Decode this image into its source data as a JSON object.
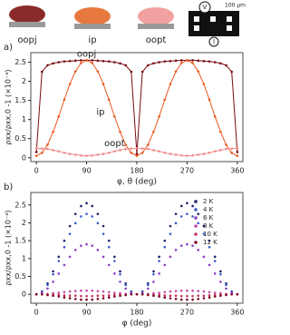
{
  "chart_data": [
    {
      "type": "line",
      "panel_label": "a)",
      "xlabel": "φ, θ (deg)",
      "ylabel": "ρxx/ρxx,0 -1 (×10⁻⁴)",
      "x": [
        0,
        10,
        20,
        30,
        40,
        50,
        60,
        70,
        80,
        90,
        100,
        110,
        120,
        130,
        140,
        150,
        160,
        170,
        180,
        190,
        200,
        210,
        220,
        230,
        240,
        250,
        260,
        270,
        280,
        290,
        300,
        310,
        320,
        330,
        340,
        350,
        360
      ],
      "xlim": [
        -10,
        370
      ],
      "xticks": [
        0,
        90,
        180,
        270,
        360
      ],
      "ylim": [
        -0.1,
        2.75
      ],
      "yticks": [
        0,
        0.5,
        1,
        1.5,
        2,
        2.5
      ],
      "series": [
        {
          "name": "oopj",
          "color": "#7a0c10",
          "values": [
            0.15,
            2.25,
            2.42,
            2.47,
            2.5,
            2.52,
            2.53,
            2.54,
            2.55,
            2.55,
            2.55,
            2.54,
            2.53,
            2.52,
            2.5,
            2.47,
            2.42,
            2.25,
            0.1,
            2.25,
            2.42,
            2.47,
            2.5,
            2.52,
            2.53,
            2.54,
            2.55,
            2.55,
            2.55,
            2.54,
            2.53,
            2.52,
            2.5,
            2.47,
            2.42,
            2.25,
            0.15
          ]
        },
        {
          "name": "ip",
          "color": "#e8591e",
          "values": [
            0.05,
            0.13,
            0.34,
            0.68,
            1.08,
            1.52,
            1.93,
            2.26,
            2.48,
            2.55,
            2.48,
            2.26,
            1.93,
            1.52,
            1.08,
            0.68,
            0.34,
            0.13,
            0.05,
            0.13,
            0.34,
            0.68,
            1.08,
            1.52,
            1.93,
            2.26,
            2.48,
            2.55,
            2.48,
            2.26,
            1.93,
            1.52,
            1.08,
            0.68,
            0.34,
            0.13,
            0.05
          ]
        },
        {
          "name": "oopt",
          "color": "#f08a8a",
          "values": [
            0.25,
            0.24,
            0.23,
            0.2,
            0.17,
            0.13,
            0.1,
            0.08,
            0.06,
            0.05,
            0.06,
            0.08,
            0.1,
            0.13,
            0.17,
            0.2,
            0.23,
            0.24,
            0.25,
            0.24,
            0.23,
            0.2,
            0.17,
            0.13,
            0.1,
            0.08,
            0.06,
            0.05,
            0.06,
            0.08,
            0.1,
            0.13,
            0.17,
            0.2,
            0.23,
            0.24,
            0.25
          ]
        }
      ]
    },
    {
      "type": "scatter",
      "panel_label": "b)",
      "xlabel": "φ (deg)",
      "ylabel": "ρxx/ρxx,0 -1 (×10⁻⁴)",
      "x": [
        0,
        10,
        20,
        30,
        40,
        50,
        60,
        70,
        80,
        90,
        100,
        110,
        120,
        130,
        140,
        150,
        160,
        170,
        180,
        190,
        200,
        210,
        220,
        230,
        240,
        250,
        260,
        270,
        280,
        290,
        300,
        310,
        320,
        330,
        340,
        350,
        360
      ],
      "xlim": [
        -10,
        370
      ],
      "xticks": [
        0,
        90,
        180,
        270,
        360
      ],
      "ylim": [
        -0.25,
        2.85
      ],
      "yticks": [
        0,
        0.5,
        1,
        1.5,
        2,
        2.5
      ],
      "series": [
        {
          "name": "2 K",
          "color": "#1b1f6b",
          "values": [
            0,
            0.08,
            0.3,
            0.64,
            1.05,
            1.5,
            1.91,
            2.25,
            2.47,
            2.55,
            2.47,
            2.25,
            1.91,
            1.5,
            1.05,
            0.64,
            0.3,
            0.08,
            0,
            0.08,
            0.3,
            0.64,
            1.05,
            1.5,
            1.91,
            2.25,
            2.47,
            2.55,
            2.47,
            2.25,
            1.91,
            1.5,
            1.05,
            0.64,
            0.3,
            0.08,
            0
          ]
        },
        {
          "name": "4 K",
          "color": "#3d5bd0",
          "values": [
            0,
            0.07,
            0.26,
            0.56,
            0.93,
            1.32,
            1.69,
            1.99,
            2.18,
            2.25,
            2.18,
            1.99,
            1.69,
            1.32,
            0.93,
            0.56,
            0.26,
            0.07,
            0,
            0.07,
            0.26,
            0.56,
            0.93,
            1.32,
            1.69,
            1.99,
            2.18,
            2.25,
            2.18,
            1.99,
            1.69,
            1.32,
            0.93,
            0.56,
            0.26,
            0.07,
            0
          ]
        },
        {
          "name": "6 K",
          "color": "#8a3fc4",
          "values": [
            0,
            0.04,
            0.16,
            0.35,
            0.58,
            0.82,
            1.05,
            1.24,
            1.36,
            1.4,
            1.36,
            1.24,
            1.05,
            0.82,
            0.58,
            0.35,
            0.16,
            0.04,
            0,
            0.04,
            0.16,
            0.35,
            0.58,
            0.82,
            1.05,
            1.24,
            1.36,
            1.4,
            1.36,
            1.24,
            1.05,
            0.82,
            0.58,
            0.35,
            0.16,
            0.04,
            0
          ]
        },
        {
          "name": "8 K",
          "color": "#c04aa8",
          "values": [
            0,
            0,
            0.01,
            0.03,
            0.04,
            0.06,
            0.08,
            0.09,
            0.1,
            0.1,
            0.1,
            0.09,
            0.08,
            0.06,
            0.04,
            0.03,
            0.01,
            0,
            0,
            0,
            0.01,
            0.03,
            0.04,
            0.06,
            0.08,
            0.09,
            0.1,
            0.1,
            0.1,
            0.09,
            0.08,
            0.06,
            0.04,
            0.03,
            0.01,
            0,
            0
          ]
        },
        {
          "name": "10 K",
          "color": "#c8325e",
          "values": [
            0,
            0,
            -0.01,
            -0.01,
            -0.02,
            -0.03,
            -0.04,
            -0.04,
            -0.05,
            -0.05,
            -0.05,
            -0.04,
            -0.04,
            -0.03,
            -0.02,
            -0.01,
            -0.01,
            0,
            0,
            0,
            -0.01,
            -0.01,
            -0.02,
            -0.03,
            -0.04,
            -0.04,
            -0.05,
            -0.05,
            -0.05,
            -0.04,
            -0.04,
            -0.03,
            -0.02,
            -0.01,
            -0.01,
            0,
            0
          ]
        },
        {
          "name": "12 K",
          "color": "#7a0c20",
          "values": [
            0,
            0,
            -0.02,
            -0.04,
            -0.06,
            -0.09,
            -0.11,
            -0.13,
            -0.15,
            -0.15,
            -0.15,
            -0.13,
            -0.11,
            -0.09,
            -0.06,
            -0.04,
            -0.02,
            0,
            0,
            0,
            -0.02,
            -0.04,
            -0.06,
            -0.09,
            -0.11,
            -0.13,
            -0.15,
            -0.15,
            -0.15,
            -0.13,
            -0.11,
            -0.09,
            -0.06,
            -0.04,
            -0.02,
            0,
            0
          ]
        }
      ]
    }
  ],
  "schematic": {
    "voltage": "V",
    "current": "I",
    "scale": "100 µm"
  }
}
